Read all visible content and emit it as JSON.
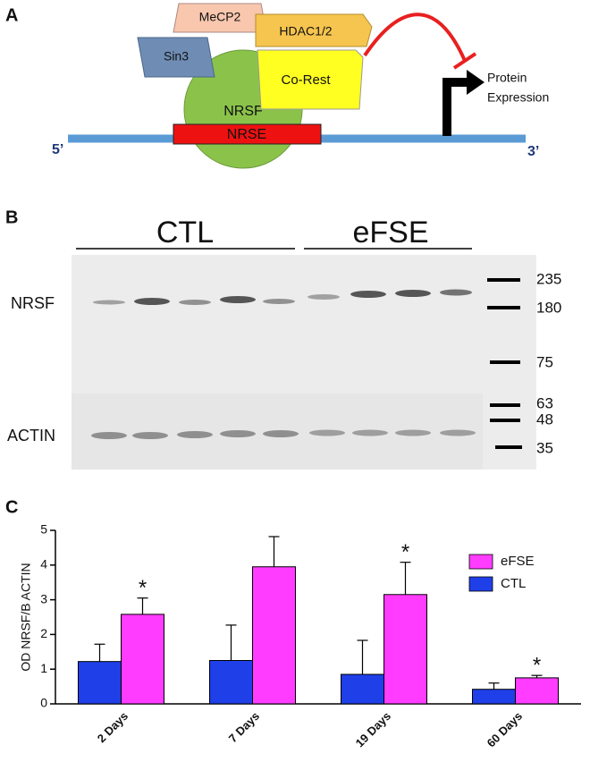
{
  "panel_a": {
    "label": "A",
    "proteins": [
      "MeCP2",
      "HDAC1/2",
      "Sin3",
      "Co-Rest",
      "NRSF"
    ],
    "element": "NRSE",
    "five_prime": "5’",
    "three_prime": "3’",
    "output": [
      "Protein",
      "Expression"
    ]
  },
  "panel_b": {
    "label": "B",
    "groups": [
      "CTL",
      "eFSE"
    ],
    "rows": [
      "NRSF",
      "ACTIN"
    ],
    "markers": [
      235,
      180,
      75,
      63,
      48,
      35
    ]
  },
  "chart_data": {
    "label": "C",
    "type": "bar",
    "ylabel": "OD NRSF/B ACTIN",
    "categories": [
      "2 Days",
      "7 Days",
      "19 Days",
      "60 Days"
    ],
    "series": [
      {
        "name": "CTL",
        "color": "#1f3fe8",
        "values": [
          1.22,
          1.25,
          0.85,
          0.42
        ],
        "errors": [
          0.5,
          1.02,
          0.98,
          0.18
        ]
      },
      {
        "name": "eFSE",
        "color": "#ff3cff",
        "values": [
          2.58,
          3.95,
          3.15,
          0.75
        ],
        "errors": [
          0.47,
          0.87,
          0.93,
          0.07
        ]
      }
    ],
    "significance": [
      "*",
      null,
      "*",
      "*"
    ],
    "ylim": [
      0,
      5
    ],
    "yticks": [
      0,
      1,
      2,
      3,
      4,
      5
    ]
  }
}
